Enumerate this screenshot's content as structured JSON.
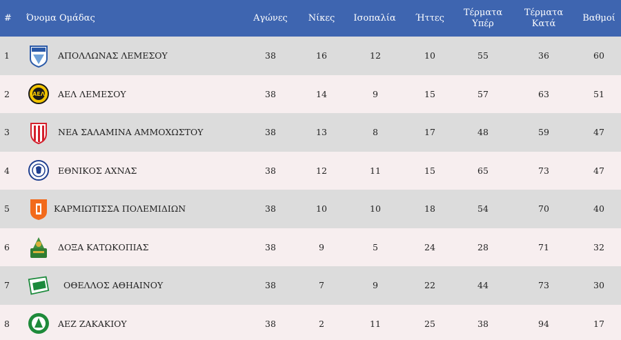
{
  "header": {
    "rank": "#",
    "team": "Όνομα Ομάδας",
    "games": "Αγώνες",
    "wins": "Νίκες",
    "draws": "Ισοπαλία",
    "losses": "Ήττες",
    "goals_for_1": "Τέρματα",
    "goals_for_2": "Υπέρ",
    "goals_against_1": "Τέρματα",
    "goals_against_2": "Κατά",
    "points": "Βαθμοί"
  },
  "rows": [
    {
      "pos": "1",
      "name": "ΑΠΟΛΛΩΝΑΣ ΛΕΜΕΣΟΥ",
      "games": "38",
      "wins": "16",
      "draws": "12",
      "losses": "10",
      "gf": "55",
      "ga": "36",
      "pts": "60",
      "logo": "apollon-crest-icon"
    },
    {
      "pos": "2",
      "name": "ΑΕΛ ΛΕΜΕΣΟΥ",
      "games": "38",
      "wins": "14",
      "draws": "9",
      "losses": "15",
      "gf": "57",
      "ga": "63",
      "pts": "51",
      "logo": "ael-crest-icon"
    },
    {
      "pos": "3",
      "name": "ΝΕΑ ΣΑΛΑΜΙΝΑ ΑΜΜΟΧΩΣΤΟΥ",
      "games": "38",
      "wins": "13",
      "draws": "8",
      "losses": "17",
      "gf": "48",
      "ga": "59",
      "pts": "47",
      "logo": "nea-salamina-crest-icon"
    },
    {
      "pos": "4",
      "name": "ΕΘΝΙΚΟΣ ΑΧΝΑΣ",
      "games": "38",
      "wins": "12",
      "draws": "11",
      "losses": "15",
      "gf": "65",
      "ga": "73",
      "pts": "47",
      "logo": "ethnikos-crest-icon"
    },
    {
      "pos": "5",
      "name": "ΚΑΡΜΙΩΤΙΣΣΑ ΠΟΛΕΜΙΔΙΩΝ",
      "games": "38",
      "wins": "10",
      "draws": "10",
      "losses": "18",
      "gf": "54",
      "ga": "70",
      "pts": "40",
      "logo": "karmiotissa-crest-icon"
    },
    {
      "pos": "6",
      "name": "ΔΟΞΑ ΚΑΤΩΚΟΠΙΑΣ",
      "games": "38",
      "wins": "9",
      "draws": "5",
      "losses": "24",
      "gf": "28",
      "ga": "71",
      "pts": "32",
      "logo": "doxa-crest-icon"
    },
    {
      "pos": "7",
      "name": "ΟΘΕΛΛΟΣ ΑΘΗΑΙΝΟΥ",
      "games": "38",
      "wins": "7",
      "draws": "9",
      "losses": "22",
      "gf": "44",
      "ga": "73",
      "pts": "30",
      "logo": "othellos-crest-icon"
    },
    {
      "pos": "8",
      "name": "ΑΕΖ ΖΑΚΑΚΙΟΥ",
      "games": "38",
      "wins": "2",
      "draws": "11",
      "losses": "25",
      "gf": "38",
      "ga": "94",
      "pts": "17",
      "logo": "aez-crest-icon"
    }
  ],
  "colors": {
    "header_bg": "#3e65b0",
    "row_odd": "#dcdcdc",
    "row_even": "#f7eeef"
  }
}
